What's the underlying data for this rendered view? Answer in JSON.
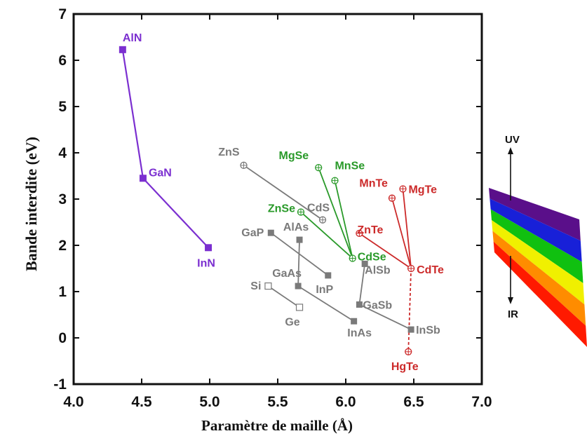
{
  "chart_data": {
    "type": "scatter",
    "xlabel": "Paramètre de maille (Å)",
    "ylabel": "Bande interdite (eV)",
    "xlim": [
      4.0,
      7.0
    ],
    "ylim": [
      -1,
      7
    ],
    "xticks": [
      "4.0",
      "4.5",
      "5.0",
      "5.5",
      "6.0",
      "6.5",
      "7.0"
    ],
    "yticks": [
      "-1",
      "0",
      "1",
      "2",
      "3",
      "4",
      "5",
      "6",
      "7"
    ],
    "grid": false,
    "colors": {
      "nitrides": "#7b2fd0",
      "iv_iii_v": "#7a7a7a",
      "ii_vi_green": "#2a9a2a",
      "ii_vi_red": "#cc2a2a"
    },
    "points": [
      {
        "name": "AlN",
        "x": 4.36,
        "y": 6.23,
        "group": "nitrides",
        "marker": "square"
      },
      {
        "name": "GaN",
        "x": 4.51,
        "y": 3.45,
        "group": "nitrides",
        "marker": "square"
      },
      {
        "name": "InN",
        "x": 4.99,
        "y": 1.95,
        "group": "nitrides",
        "marker": "square"
      },
      {
        "name": "ZnS",
        "x": 5.25,
        "y": 3.73,
        "group": "iv_iii_v",
        "marker": "circle-plus"
      },
      {
        "name": "CdS",
        "x": 5.83,
        "y": 2.55,
        "group": "iv_iii_v",
        "marker": "circle-plus"
      },
      {
        "name": "GaP",
        "x": 5.45,
        "y": 2.27,
        "group": "iv_iii_v",
        "marker": "square"
      },
      {
        "name": "AlAs",
        "x": 5.66,
        "y": 2.12,
        "group": "iv_iii_v",
        "marker": "square"
      },
      {
        "name": "InP",
        "x": 5.87,
        "y": 1.35,
        "group": "iv_iii_v",
        "marker": "square"
      },
      {
        "name": "GaAs",
        "x": 5.65,
        "y": 1.12,
        "group": "iv_iii_v",
        "marker": "square"
      },
      {
        "name": "Si",
        "x": 5.43,
        "y": 1.12,
        "group": "iv_iii_v",
        "marker": "open-square"
      },
      {
        "name": "Ge",
        "x": 5.66,
        "y": 0.66,
        "group": "iv_iii_v",
        "marker": "open-square"
      },
      {
        "name": "AlSb",
        "x": 6.14,
        "y": 1.6,
        "group": "iv_iii_v",
        "marker": "square"
      },
      {
        "name": "GaSb",
        "x": 6.1,
        "y": 0.72,
        "group": "iv_iii_v",
        "marker": "square"
      },
      {
        "name": "InAs",
        "x": 6.06,
        "y": 0.36,
        "group": "iv_iii_v",
        "marker": "square"
      },
      {
        "name": "InSb",
        "x": 6.48,
        "y": 0.18,
        "group": "iv_iii_v",
        "marker": "square"
      },
      {
        "name": "MgSe",
        "x": 5.8,
        "y": 3.68,
        "group": "ii_vi_green",
        "marker": "circle-plus"
      },
      {
        "name": "MnSe",
        "x": 5.92,
        "y": 3.4,
        "group": "ii_vi_green",
        "marker": "circle-plus"
      },
      {
        "name": "ZnSe",
        "x": 5.67,
        "y": 2.72,
        "group": "ii_vi_green",
        "marker": "circle-plus"
      },
      {
        "name": "CdSe",
        "x": 6.05,
        "y": 1.72,
        "group": "ii_vi_green",
        "marker": "circle-plus"
      },
      {
        "name": "MnTe",
        "x": 6.34,
        "y": 3.02,
        "group": "ii_vi_red",
        "marker": "circle-plus"
      },
      {
        "name": "MgTe",
        "x": 6.42,
        "y": 3.22,
        "group": "ii_vi_red",
        "marker": "circle-plus"
      },
      {
        "name": "ZnTe",
        "x": 6.1,
        "y": 2.26,
        "group": "ii_vi_red",
        "marker": "circle-plus"
      },
      {
        "name": "CdTe",
        "x": 6.48,
        "y": 1.5,
        "group": "ii_vi_red",
        "marker": "circle-plus"
      },
      {
        "name": "HgTe",
        "x": 6.46,
        "y": -0.3,
        "group": "ii_vi_red",
        "marker": "circle-plus"
      }
    ],
    "lines": [
      {
        "from": "AlN",
        "to": "GaN",
        "group": "nitrides"
      },
      {
        "from": "GaN",
        "to": "InN",
        "group": "nitrides"
      },
      {
        "from": "ZnS",
        "to": "CdS",
        "group": "iv_iii_v"
      },
      {
        "from": "GaP",
        "to": "InP",
        "group": "iv_iii_v"
      },
      {
        "from": "AlAs",
        "to": "GaAs",
        "group": "iv_iii_v"
      },
      {
        "from": "Si",
        "to": "Ge",
        "group": "iv_iii_v"
      },
      {
        "from": "AlSb",
        "to": "GaSb",
        "group": "iv_iii_v"
      },
      {
        "from": "GaAs",
        "to": "InAs",
        "group": "iv_iii_v"
      },
      {
        "from": "GaSb",
        "to": "InSb",
        "group": "iv_iii_v"
      },
      {
        "from": "MgSe",
        "to": "CdSe",
        "group": "ii_vi_green"
      },
      {
        "from": "MnSe",
        "to": "CdSe",
        "group": "ii_vi_green"
      },
      {
        "from": "ZnSe",
        "to": "CdSe",
        "group": "ii_vi_green"
      },
      {
        "from": "MnTe",
        "to": "CdTe",
        "group": "ii_vi_red"
      },
      {
        "from": "MgTe",
        "to": "CdTe",
        "group": "ii_vi_red"
      },
      {
        "from": "ZnTe",
        "to": "CdTe",
        "group": "ii_vi_red"
      },
      {
        "from": "CdTe",
        "to": "HgTe",
        "group": "ii_vi_red",
        "style": "dashed"
      }
    ],
    "spectrum": {
      "top_label": "UV",
      "bottom_label": "IR",
      "bands": [
        "#5a0f8a",
        "#1820d8",
        "#10c010",
        "#f0f000",
        "#ff8c00",
        "#ff1a00"
      ]
    }
  }
}
